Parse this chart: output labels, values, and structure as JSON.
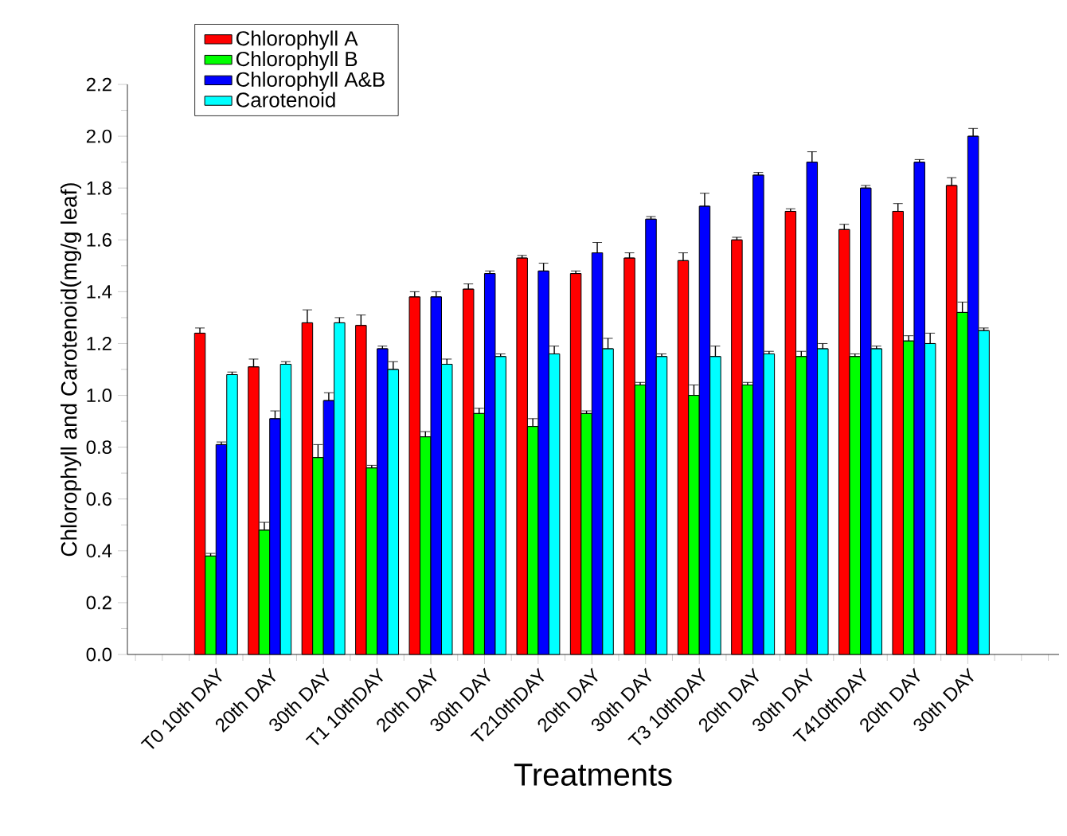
{
  "chart_data": {
    "type": "bar",
    "xlabel": "Treatments",
    "ylabel": "Chlorophyll and Carotenoid(mg/g leaf)",
    "categories": [
      "T0 10th DAY",
      "20th DAY",
      "30th DAY",
      "T1 10thDAY",
      "20th DAY",
      "30th DAY",
      "T210thDAY",
      "20th DAY",
      "30th DAY",
      "T3 10thDAY",
      "20th DAY",
      "30th DAY",
      "T410thDAY",
      "20th DAY",
      "30th DAY"
    ],
    "ylim": [
      0,
      2.2
    ],
    "yticks": [
      {
        "value": 0,
        "label": "0.0"
      },
      0.2,
      0.4,
      0.6,
      0.8,
      {
        "value": 1,
        "label": "1.0"
      },
      1.2,
      1.4,
      1.6,
      1.8,
      {
        "value": 2,
        "label": "2.0"
      },
      2.2
    ],
    "legend": "top left",
    "series": [
      {
        "name": "Chlorophyll A",
        "color": "#ff0000",
        "values": [
          1.24,
          1.11,
          1.28,
          1.27,
          1.38,
          1.41,
          1.53,
          1.47,
          1.53,
          1.52,
          1.6,
          1.71,
          1.64,
          1.71,
          1.81
        ],
        "errors": [
          [
            1.24,
            1.26
          ],
          [
            1.11,
            1.14
          ],
          [
            1.28,
            1.33
          ],
          [
            1.27,
            1.31
          ],
          [
            1.38,
            1.4
          ],
          [
            1.41,
            1.43
          ],
          [
            1.53,
            1.54
          ],
          [
            1.47,
            1.48
          ],
          [
            1.53,
            1.55
          ],
          [
            1.52,
            1.55
          ],
          [
            1.6,
            1.61
          ],
          [
            1.71,
            1.72
          ],
          [
            1.64,
            1.66
          ],
          [
            1.71,
            1.74
          ],
          [
            1.81,
            1.84
          ]
        ]
      },
      {
        "name": "Chlorophyll B",
        "color": "#00ff00",
        "values": [
          0.38,
          0.48,
          0.76,
          0.72,
          0.84,
          0.93,
          0.88,
          0.93,
          1.04,
          1.0,
          1.04,
          1.15,
          1.15,
          1.21,
          1.32
        ],
        "errors": [
          [
            0.38,
            0.39
          ],
          [
            0.48,
            0.51
          ],
          [
            0.76,
            0.81
          ],
          [
            0.72,
            0.73
          ],
          [
            0.84,
            0.86
          ],
          [
            0.93,
            0.95
          ],
          [
            0.88,
            0.91
          ],
          [
            0.93,
            0.94
          ],
          [
            1.04,
            1.05
          ],
          [
            1.0,
            1.04
          ],
          [
            1.04,
            1.05
          ],
          [
            1.15,
            1.17
          ],
          [
            1.15,
            1.16
          ],
          [
            1.21,
            1.23
          ],
          [
            1.32,
            1.36
          ]
        ]
      },
      {
        "name": "Chlorophyll A&B",
        "color": "#0000ff",
        "values": [
          0.81,
          0.91,
          0.98,
          1.18,
          1.38,
          1.47,
          1.48,
          1.55,
          1.68,
          1.73,
          1.85,
          1.9,
          1.8,
          1.9,
          2.0
        ],
        "errors": [
          [
            0.81,
            0.82
          ],
          [
            0.91,
            0.94
          ],
          [
            0.98,
            1.01
          ],
          [
            1.18,
            1.19
          ],
          [
            1.38,
            1.4
          ],
          [
            1.47,
            1.48
          ],
          [
            1.48,
            1.51
          ],
          [
            1.55,
            1.59
          ],
          [
            1.68,
            1.69
          ],
          [
            1.73,
            1.78
          ],
          [
            1.85,
            1.86
          ],
          [
            1.9,
            1.94
          ],
          [
            1.8,
            1.81
          ],
          [
            1.9,
            1.91
          ],
          [
            2.0,
            2.03
          ]
        ]
      },
      {
        "name": "Carotenoid",
        "color": "#00ffff",
        "values": [
          1.08,
          1.12,
          1.28,
          1.1,
          1.12,
          1.15,
          1.16,
          1.18,
          1.15,
          1.15,
          1.16,
          1.18,
          1.18,
          1.2,
          1.25
        ],
        "errors": [
          [
            1.08,
            1.09
          ],
          [
            1.12,
            1.13
          ],
          [
            1.28,
            1.3
          ],
          [
            1.1,
            1.13
          ],
          [
            1.12,
            1.14
          ],
          [
            1.15,
            1.16
          ],
          [
            1.16,
            1.19
          ],
          [
            1.18,
            1.22
          ],
          [
            1.15,
            1.16
          ],
          [
            1.15,
            1.19
          ],
          [
            1.16,
            1.17
          ],
          [
            1.18,
            1.2
          ],
          [
            1.18,
            1.19
          ],
          [
            1.2,
            1.24
          ],
          [
            1.25,
            1.26
          ]
        ]
      }
    ]
  }
}
